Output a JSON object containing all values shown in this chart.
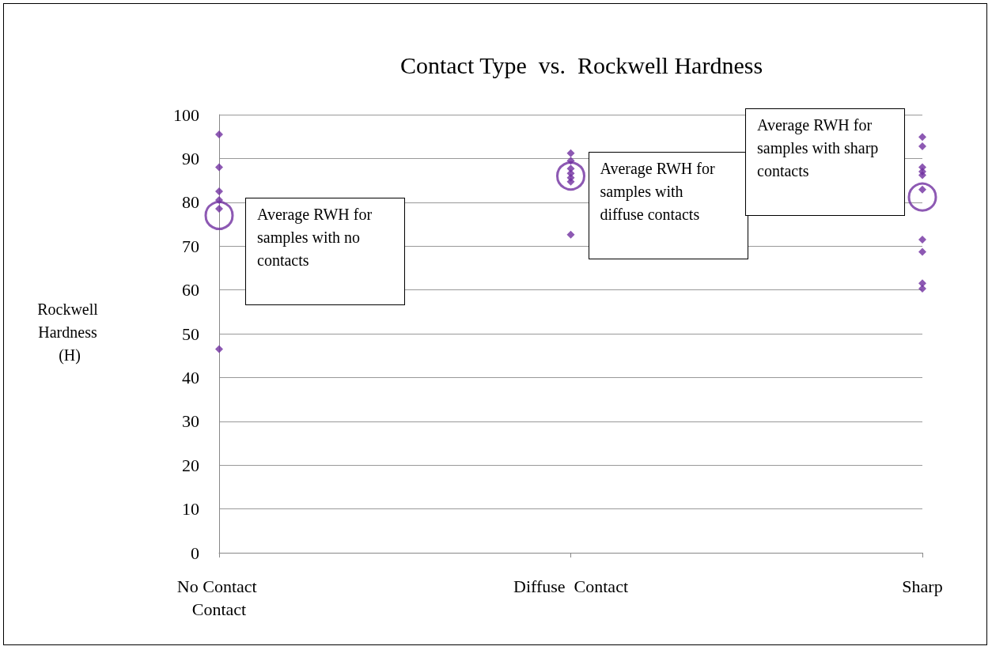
{
  "chart_data": {
    "type": "scatter",
    "title": "Contact Type  vs.  Rockwell Hardness",
    "ylabel": "Rockwell Hardness (H)",
    "categories": [
      "No Contact Contact",
      "Diffuse  Contact",
      "Sharp"
    ],
    "series": [
      {
        "color": "#7030a0",
        "marker": "diamond",
        "x": [
          "No Contact Contact",
          "No Contact Contact",
          "No Contact Contact",
          "No Contact Contact",
          "No Contact Contact",
          "No Contact Contact",
          "Diffuse  Contact",
          "Diffuse  Contact",
          "Diffuse  Contact",
          "Diffuse  Contact",
          "Diffuse  Contact",
          "Diffuse  Contact",
          "Diffuse  Contact",
          "Sharp",
          "Sharp",
          "Sharp",
          "Sharp",
          "Sharp",
          "Sharp",
          "Sharp",
          "Sharp",
          "Sharp",
          "Sharp"
        ],
        "values": [
          95.5,
          88,
          82.5,
          80.5,
          78.5,
          46.5,
          91.2,
          89.5,
          87.7,
          86.6,
          85.6,
          84.7,
          72.6,
          94.9,
          92.8,
          88,
          87,
          86.2,
          82.9,
          71.5,
          68.7,
          61.5,
          60.3
        ]
      },
      {
        "color": "#7030a0",
        "marker": "circle",
        "x": [
          "No Contact Contact",
          "Diffuse  Contact",
          "Sharp"
        ],
        "values": [
          77,
          86,
          81.2
        ]
      }
    ],
    "annotations": [
      "Average RWH for samples with no contacts",
      "Average RWH for samples with diffuse contacts",
      "Average RWH for samples with sharp contacts"
    ],
    "ylim": [
      0,
      100
    ],
    "yticks": [
      0,
      10,
      20,
      30,
      40,
      50,
      60,
      70,
      80,
      90,
      100
    ],
    "grid": "y"
  }
}
